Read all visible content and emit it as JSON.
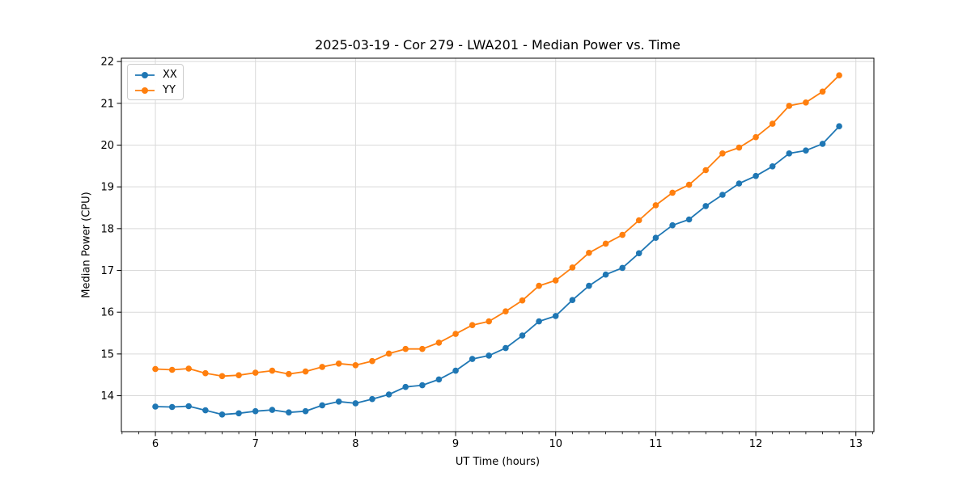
{
  "figure": {
    "title": "2025-03-19 - Cor 279 - LWA201 - Median Power vs. Time"
  },
  "chart_data": {
    "type": "line",
    "title": "2025-03-19 - Cor 279 - LWA201 - Median Power vs. Time",
    "xlabel": "UT Time (hours)",
    "ylabel": "Median Power (CPU)",
    "xlim": [
      5.66,
      13.18
    ],
    "ylim": [
      13.14,
      22.08
    ],
    "xticks": [
      6,
      7,
      8,
      9,
      10,
      11,
      12,
      13
    ],
    "yticks": [
      14,
      15,
      16,
      17,
      18,
      19,
      20,
      21,
      22
    ],
    "x_minor_step": 0.1667,
    "grid": true,
    "grid_color": "#d9d9d9",
    "legend_position": "upper left",
    "x": [
      6,
      6.167,
      6.333,
      6.5,
      6.667,
      6.833,
      7,
      7.167,
      7.333,
      7.5,
      7.667,
      7.833,
      8,
      8.167,
      8.333,
      8.5,
      8.667,
      8.833,
      9,
      9.167,
      9.333,
      9.5,
      9.667,
      9.833,
      10,
      10.167,
      10.333,
      10.5,
      10.667,
      10.833,
      11,
      11.167,
      11.333,
      11.5,
      11.667,
      11.833,
      12,
      12.167,
      12.333,
      12.5,
      12.667,
      12.833
    ],
    "series": [
      {
        "name": "XX",
        "color": "#1f77b4",
        "values": [
          13.74,
          13.73,
          13.75,
          13.65,
          13.55,
          13.58,
          13.63,
          13.66,
          13.6,
          13.63,
          13.77,
          13.86,
          13.82,
          13.92,
          14.03,
          14.21,
          14.25,
          14.39,
          14.6,
          14.88,
          14.96,
          15.14,
          15.44,
          15.78,
          15.91,
          16.29,
          16.63,
          16.9,
          17.06,
          17.41,
          17.78,
          18.08,
          18.22,
          18.54,
          18.81,
          19.08,
          19.26,
          19.49,
          19.8,
          19.87,
          20.03,
          20.45
        ]
      },
      {
        "name": "YY",
        "color": "#ff7f0e",
        "values": [
          14.64,
          14.62,
          14.65,
          14.54,
          14.47,
          14.49,
          14.55,
          14.6,
          14.52,
          14.58,
          14.69,
          14.77,
          14.73,
          14.83,
          15.01,
          15.12,
          15.12,
          15.27,
          15.48,
          15.69,
          15.78,
          16.02,
          16.28,
          16.63,
          16.76,
          17.07,
          17.42,
          17.64,
          17.85,
          18.2,
          18.56,
          18.86,
          19.05,
          19.4,
          19.8,
          19.94,
          20.19,
          20.51,
          20.94,
          21.02,
          21.28,
          21.67
        ]
      }
    ]
  }
}
